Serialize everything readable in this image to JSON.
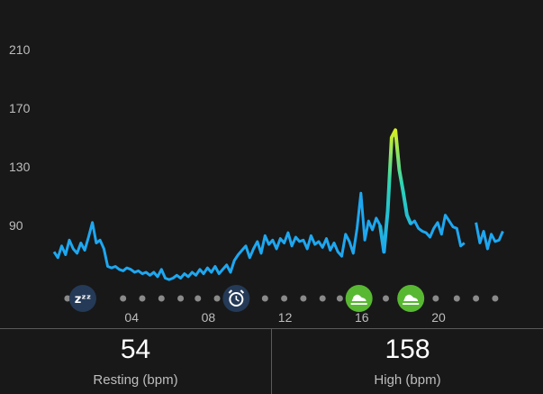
{
  "chart_data": {
    "type": "line",
    "title": "",
    "xlabel": "",
    "ylabel": "",
    "y_ticks": [
      "210",
      "170",
      "130",
      "90"
    ],
    "ylim": [
      40,
      225
    ],
    "x_ticks": [
      "04",
      "08",
      "12",
      "16",
      "20"
    ],
    "x_tick_hours": [
      4,
      8,
      12,
      16,
      20
    ],
    "xlim": [
      0,
      24
    ],
    "grid": false,
    "colors": {
      "line": "#1ea7f0",
      "peak_low": "#2ad4b8",
      "peak_high": "#d6f022",
      "icon_dark": "#243a57",
      "icon_green": "#58b832",
      "dot": "#8a8a8a"
    },
    "series": [
      {
        "x": [
          0.0,
          0.2,
          0.4,
          0.6,
          0.8,
          1.0,
          1.2,
          1.4,
          1.6,
          1.8,
          2.0,
          2.2,
          2.4,
          2.6,
          2.8,
          3.0,
          3.2,
          3.4,
          3.6,
          3.8,
          4.0,
          4.2,
          4.4,
          4.6,
          4.8,
          5.0,
          5.2,
          5.4,
          5.6,
          5.8,
          6.0,
          6.2,
          6.4,
          6.6,
          6.8,
          7.0,
          7.2,
          7.4,
          7.6,
          7.8,
          8.0,
          8.2,
          8.4,
          8.6,
          8.8,
          9.0,
          9.2,
          9.4,
          9.6,
          9.8,
          10.0,
          10.2,
          10.4,
          10.6,
          10.8,
          11.0,
          11.2,
          11.4,
          11.6,
          11.8,
          12.0,
          12.2,
          12.4,
          12.6,
          12.8,
          13.0,
          13.2,
          13.4,
          13.6,
          13.8,
          14.0,
          14.2,
          14.4,
          14.6,
          14.8,
          15.0,
          15.2,
          15.4,
          15.6,
          15.8,
          16.0,
          16.2,
          16.4,
          16.6,
          16.8,
          17.0,
          17.2,
          17.4,
          17.6,
          17.8,
          18.0,
          18.2,
          18.4,
          18.6,
          18.8,
          19.0,
          19.2,
          19.4,
          19.6,
          19.8,
          20.0,
          20.2,
          20.4,
          20.6,
          20.8,
          21.0,
          21.2,
          21.4
        ],
        "values": [
          72,
          68,
          76,
          70,
          80,
          74,
          71,
          78,
          73,
          82,
          92,
          78,
          80,
          74,
          62,
          61,
          62,
          60,
          59,
          61,
          60,
          58,
          59,
          57,
          58,
          56,
          58,
          55,
          60,
          54,
          53,
          54,
          56,
          54,
          57,
          55,
          58,
          56,
          60,
          57,
          61,
          58,
          62,
          57,
          60,
          63,
          58,
          66,
          70,
          73,
          76,
          68,
          74,
          79,
          71,
          83,
          77,
          80,
          74,
          81,
          78,
          85,
          76,
          82,
          79,
          80,
          74,
          83,
          77,
          79,
          75,
          81,
          73,
          78,
          72,
          69,
          84,
          79,
          71,
          88,
          112,
          80,
          93,
          87,
          95,
          90,
          72,
          100,
          150,
          155,
          128,
          113,
          97,
          91,
          93,
          88,
          86,
          85,
          82,
          88,
          92,
          84,
          97,
          93,
          89,
          88,
          76,
          78
        ],
        "segments": [
          [
            0,
            105
          ]
        ]
      },
      {
        "x": [
          22.0,
          22.2,
          22.4,
          22.6,
          22.8,
          23.0,
          23.2,
          23.4
        ],
        "values": [
          92,
          78,
          86,
          74,
          84,
          79,
          80,
          86
        ]
      }
    ],
    "markers": [
      {
        "type": "sleep-icon",
        "hour": 1.5
      },
      {
        "type": "alarm-icon",
        "hour": 9.5
      },
      {
        "type": "shoe-icon",
        "hour": 15.9
      },
      {
        "type": "shoe-icon",
        "hour": 18.6
      }
    ],
    "dot_hours": [
      0.7,
      3.6,
      4.6,
      5.6,
      6.6,
      7.5,
      8.5,
      11.0,
      12.0,
      13.0,
      14.0,
      14.9,
      17.3,
      19.9,
      21.0,
      22.0,
      23.0
    ]
  },
  "stats": {
    "resting": {
      "value": "54",
      "label": "Resting (bpm)"
    },
    "high": {
      "value": "158",
      "label": "High (bpm)"
    }
  }
}
